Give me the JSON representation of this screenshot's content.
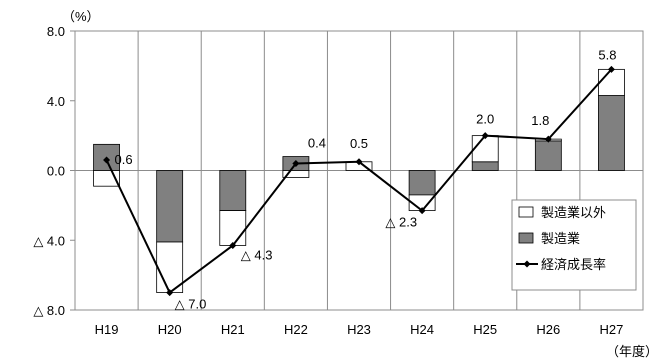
{
  "chart_data": {
    "type": "bar",
    "stacked": true,
    "categories": [
      "H19",
      "H20",
      "H21",
      "H22",
      "H23",
      "H24",
      "H25",
      "H26",
      "H27"
    ],
    "y_unit": "（%）",
    "x_unit": "（年度）",
    "ylim": [
      -8.0,
      8.0
    ],
    "yticks": [
      8.0,
      4.0,
      0.0,
      -4.0,
      -8.0
    ],
    "ytick_labels": [
      "8.0",
      "4.0",
      "0.0",
      "△ 4.0",
      "△ 8.0"
    ],
    "grid": "vertical category separators",
    "legend_position": "right",
    "series": [
      {
        "name": "製造業以外",
        "kind": "bar",
        "color": "#ffffff",
        "values": [
          -0.9,
          -2.9,
          -2.0,
          -0.4,
          0.5,
          -0.9,
          1.5,
          0.1,
          1.5
        ]
      },
      {
        "name": "製造業",
        "kind": "bar",
        "color": "#808080",
        "values": [
          1.5,
          -4.1,
          -2.3,
          0.8,
          0.0,
          -1.4,
          0.5,
          1.7,
          4.3
        ]
      },
      {
        "name": "経済成長率",
        "kind": "line",
        "color": "#000000",
        "values": [
          0.6,
          -7.0,
          -4.3,
          0.4,
          0.5,
          -2.3,
          2.0,
          1.8,
          5.8
        ],
        "labels": [
          "0.6",
          "△ 7.0",
          "△ 4.3",
          "0.4",
          "0.5",
          "△ 2.3",
          "2.0",
          "1.8",
          "5.8"
        ]
      }
    ]
  }
}
